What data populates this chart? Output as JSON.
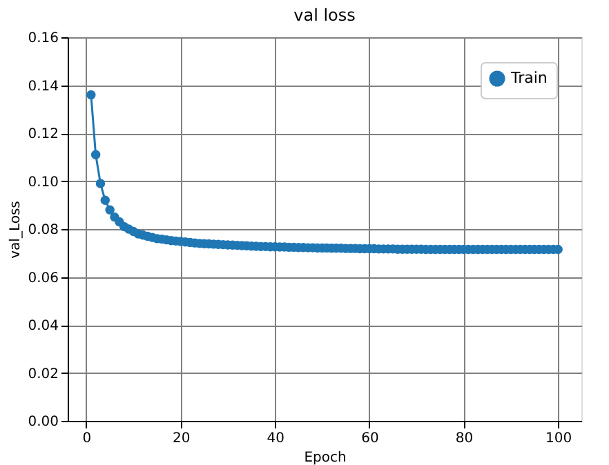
{
  "chart_data": {
    "type": "line",
    "title": "val loss",
    "xlabel": "Epoch",
    "ylabel": "val_Loss",
    "x": [
      1,
      2,
      3,
      4,
      5,
      6,
      7,
      8,
      9,
      10,
      11,
      12,
      13,
      14,
      15,
      16,
      17,
      18,
      19,
      20,
      21,
      22,
      23,
      24,
      25,
      26,
      27,
      28,
      29,
      30,
      31,
      32,
      33,
      34,
      35,
      36,
      37,
      38,
      39,
      40,
      41,
      42,
      43,
      44,
      45,
      46,
      47,
      48,
      49,
      50,
      51,
      52,
      53,
      54,
      55,
      56,
      57,
      58,
      59,
      60,
      61,
      62,
      63,
      64,
      65,
      66,
      67,
      68,
      69,
      70,
      71,
      72,
      73,
      74,
      75,
      76,
      77,
      78,
      79,
      80,
      81,
      82,
      83,
      84,
      85,
      86,
      87,
      88,
      89,
      90,
      91,
      92,
      93,
      94,
      95,
      96,
      97,
      98,
      99,
      100
    ],
    "series": [
      {
        "name": "Train",
        "color": "#1f77b4",
        "values": [
          0.136,
          0.111,
          0.099,
          0.092,
          0.088,
          0.085,
          0.083,
          0.081,
          0.08,
          0.079,
          0.078,
          0.0775,
          0.077,
          0.0765,
          0.076,
          0.0758,
          0.0755,
          0.0752,
          0.075,
          0.0748,
          0.0746,
          0.0744,
          0.0742,
          0.074,
          0.0739,
          0.0738,
          0.0737,
          0.0736,
          0.0735,
          0.0734,
          0.0733,
          0.0732,
          0.0731,
          0.073,
          0.0729,
          0.0728,
          0.0727,
          0.0727,
          0.0726,
          0.0726,
          0.0725,
          0.0725,
          0.0724,
          0.0724,
          0.0723,
          0.0723,
          0.0722,
          0.0722,
          0.0721,
          0.0721,
          0.0721,
          0.072,
          0.072,
          0.072,
          0.0719,
          0.0719,
          0.0719,
          0.0718,
          0.0718,
          0.0718,
          0.0718,
          0.0717,
          0.0717,
          0.0717,
          0.0717,
          0.0716,
          0.0716,
          0.0716,
          0.0716,
          0.0716,
          0.0716,
          0.0715,
          0.0715,
          0.0715,
          0.0715,
          0.0715,
          0.0715,
          0.0715,
          0.0715,
          0.0715,
          0.0715,
          0.0715,
          0.0715,
          0.0715,
          0.0715,
          0.0715,
          0.0715,
          0.0715,
          0.0715,
          0.0715,
          0.0715,
          0.0715,
          0.0715,
          0.0715,
          0.0715,
          0.0715,
          0.0715,
          0.0715,
          0.0715,
          0.0715
        ]
      }
    ],
    "xlim": [
      -3.95,
      104.95
    ],
    "xticks": [
      0,
      20,
      40,
      60,
      80,
      100
    ],
    "ylim": [
      0,
      0.16
    ],
    "yticks": [
      {
        "value": 0,
        "label": "0.00"
      },
      0.02,
      0.04,
      0.06,
      0.08,
      {
        "value": 0.1,
        "label": "0.10"
      },
      0.12,
      0.14,
      0.16
    ],
    "grid": true,
    "legend": "top right",
    "marker": "circle",
    "line_style": "solid"
  }
}
